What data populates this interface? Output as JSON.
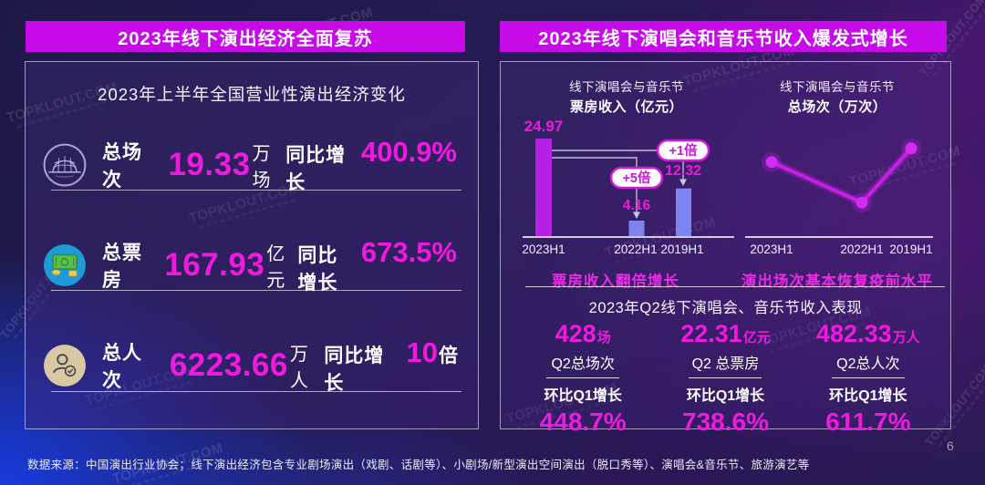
{
  "page": {
    "watermark": "TOPKLOUT.COM",
    "page_number": "6",
    "footer_source": "数据来源：中国演出行业协会；线下演出经济包含专业剧场演出（戏剧、话剧等）、小剧场/新型演出空间演出（脱口秀等）、演唱会&音乐节、旅游演艺等"
  },
  "colors": {
    "banner": "#c60be8",
    "accent_magenta": "#f01ade",
    "caption_magenta": "#ea2ce4",
    "bar_2023": "#b620e4",
    "bar_other": "#7d83ef",
    "line": "#c81fe6"
  },
  "left_panel": {
    "banner": "2023年线下演出经济全面复苏",
    "subtitle": "2023年上半年全国营业性演出经济变化",
    "rows": [
      {
        "icon": "theater-venue-icon",
        "label": "总场次",
        "value": "19.33",
        "unit": "万场",
        "growth_label": "同比增长",
        "growth_value": "400.9%",
        "growth_unit": ""
      },
      {
        "icon": "box-office-money-icon",
        "label": "总票房",
        "value": "167.93",
        "unit": "亿元",
        "growth_label": "同比增长",
        "growth_value": "673.5%",
        "growth_unit": ""
      },
      {
        "icon": "audience-person-icon",
        "label": "总人次",
        "value": "6223.66",
        "unit": "万人",
        "growth_label": "同比增长",
        "growth_value": "10",
        "growth_unit": "倍"
      }
    ]
  },
  "right_panel": {
    "banner": "2023年线下演唱会和音乐节收入爆发式增长",
    "q2": {
      "title": "2023年Q2线下演唱会、音乐节收入表现",
      "stats": [
        {
          "value": "428",
          "unit": "场",
          "label": "Q2总场次",
          "growth_label": "环比Q1增长",
          "growth_value": "448.7%"
        },
        {
          "value": "22.31",
          "unit": "亿元",
          "label": "Q2 总票房",
          "growth_label": "环比Q1增长",
          "growth_value": "738.6%"
        },
        {
          "value": "482.33",
          "unit": "万人",
          "label": "Q2总人次",
          "growth_label": "环比Q1增长",
          "growth_value": "611.7%"
        }
      ]
    }
  },
  "chart_data": [
    {
      "type": "bar",
      "title_line1": "线下演唱会与音乐节",
      "title_line2": "票房收入（亿元）",
      "categories": [
        "2023H1",
        "2022H1",
        "2019H1"
      ],
      "values": [
        24.97,
        4.16,
        12.32
      ],
      "ylim": [
        0,
        26
      ],
      "grid": false,
      "bar_colors": [
        "#b620e4",
        "#7d83ef",
        "#7d83ef"
      ],
      "annotations": [
        {
          "text": "+1倍",
          "from": "2023H1",
          "to": "2019H1"
        },
        {
          "text": "+5倍",
          "from": "2023H1",
          "to": "2022H1"
        }
      ],
      "caption": "票房收入翻倍增长"
    },
    {
      "type": "line",
      "title_line1": "线下演唱会与音乐节",
      "title_line2": "总场次（万次）",
      "categories": [
        "2023H1",
        "2022H1",
        "2019H1"
      ],
      "values_labeled": false,
      "values_estimated_relative": [
        0.61,
        0.28,
        0.72
      ],
      "grid": false,
      "line_color": "#c81fe6",
      "caption": "演出场次基本恢复疫前水平"
    }
  ]
}
